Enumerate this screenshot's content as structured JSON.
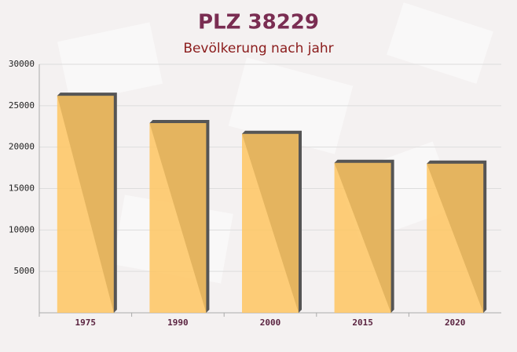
{
  "chart_data": {
    "type": "bar",
    "title": "PLZ 38229",
    "subtitle": "Bevölkerung nach jahr",
    "categories": [
      "1975",
      "1990",
      "2000",
      "2015",
      "2020"
    ],
    "values": [
      26200,
      22900,
      21600,
      18100,
      18000
    ],
    "color": "#fec561",
    "ylim": [
      0,
      30000
    ],
    "yticks": [
      5000,
      10000,
      15000,
      20000,
      25000,
      30000
    ],
    "grid": true
  }
}
